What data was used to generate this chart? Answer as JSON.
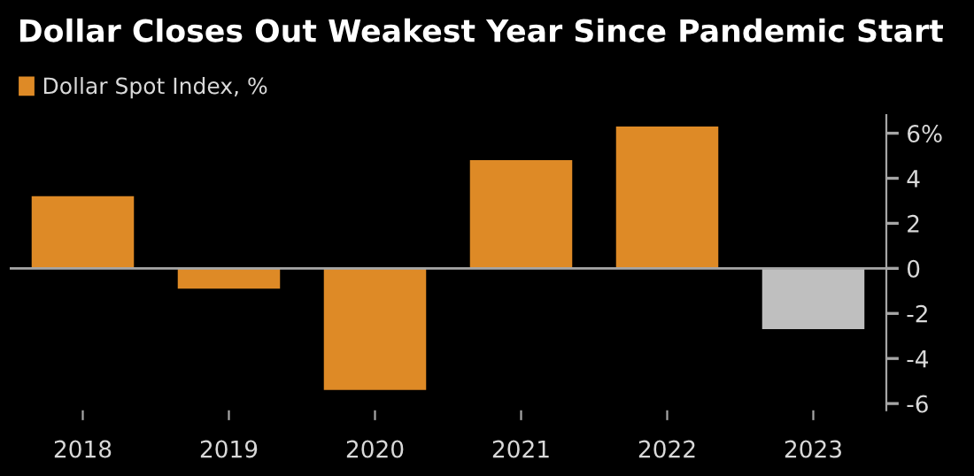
{
  "chart_data": {
    "type": "bar",
    "title": "Dollar Closes Out Weakest Year Since Pandemic Start",
    "categories": [
      "2018",
      "2019",
      "2020",
      "2021",
      "2022",
      "2023"
    ],
    "series": [
      {
        "name": "Dollar Spot Index, %",
        "color": "#de8a26",
        "colors": [
          "#de8a26",
          "#de8a26",
          "#de8a26",
          "#de8a26",
          "#de8a26",
          "#bfbfbf"
        ],
        "values": [
          3.2,
          -0.9,
          -5.4,
          4.8,
          6.3,
          -2.7
        ]
      }
    ],
    "ylim": [
      -6.3,
      6.8
    ],
    "yticks": [
      {
        "value": 6,
        "label": "6%"
      },
      4,
      2,
      0,
      -2,
      -4,
      -6
    ],
    "ref_lines": [
      {
        "axis": "y",
        "value": 0,
        "color": "#a6a6a6"
      }
    ],
    "grid": false,
    "legend": "top left"
  }
}
